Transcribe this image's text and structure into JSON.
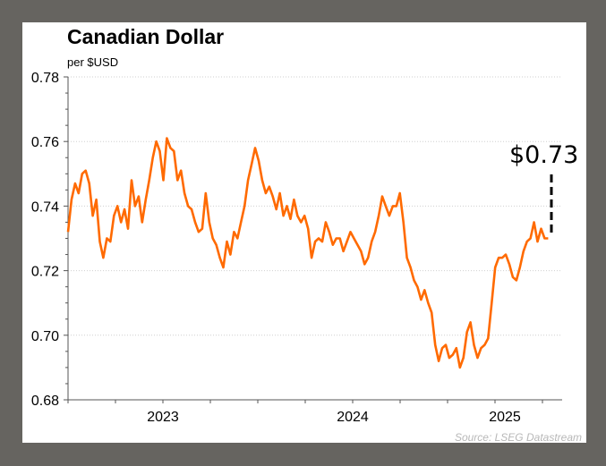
{
  "chart_data": {
    "type": "line",
    "title": "Canadian Dollar",
    "subtitle": "per $USD",
    "xlabel": "",
    "ylabel": "",
    "ylim": [
      0.68,
      0.78
    ],
    "yticks": [
      "0.78",
      "0.76",
      "0.74",
      "0.72",
      "0.70",
      "0.68"
    ],
    "ytick_values": [
      0.78,
      0.76,
      0.74,
      0.72,
      0.7,
      0.68
    ],
    "xticks": [
      "2023",
      "2024",
      "2025"
    ],
    "xlim": [
      2023.0,
      2025.58
    ],
    "grid": true,
    "series": [
      {
        "name": "Canadian Dollar per $USD",
        "color": "#ff6a00",
        "x_start": 2023.0,
        "x_end": 2025.53,
        "values": [
          0.732,
          0.742,
          0.747,
          0.744,
          0.75,
          0.751,
          0.747,
          0.737,
          0.742,
          0.729,
          0.724,
          0.73,
          0.729,
          0.737,
          0.74,
          0.735,
          0.739,
          0.733,
          0.748,
          0.74,
          0.743,
          0.735,
          0.742,
          0.748,
          0.755,
          0.76,
          0.757,
          0.748,
          0.761,
          0.758,
          0.757,
          0.748,
          0.751,
          0.744,
          0.74,
          0.739,
          0.735,
          0.732,
          0.733,
          0.744,
          0.735,
          0.73,
          0.728,
          0.724,
          0.721,
          0.729,
          0.725,
          0.732,
          0.73,
          0.735,
          0.74,
          0.748,
          0.753,
          0.758,
          0.754,
          0.748,
          0.744,
          0.746,
          0.743,
          0.739,
          0.744,
          0.737,
          0.74,
          0.736,
          0.742,
          0.737,
          0.735,
          0.737,
          0.733,
          0.724,
          0.729,
          0.73,
          0.729,
          0.735,
          0.732,
          0.728,
          0.73,
          0.73,
          0.726,
          0.729,
          0.732,
          0.73,
          0.728,
          0.726,
          0.722,
          0.724,
          0.729,
          0.732,
          0.737,
          0.743,
          0.74,
          0.737,
          0.74,
          0.74,
          0.744,
          0.735,
          0.724,
          0.721,
          0.717,
          0.715,
          0.711,
          0.714,
          0.71,
          0.707,
          0.697,
          0.692,
          0.696,
          0.697,
          0.693,
          0.694,
          0.696,
          0.69,
          0.693,
          0.701,
          0.704,
          0.697,
          0.693,
          0.696,
          0.697,
          0.699,
          0.71,
          0.721,
          0.724,
          0.724,
          0.725,
          0.722,
          0.718,
          0.717,
          0.721,
          0.726,
          0.729,
          0.73,
          0.735,
          0.729,
          0.733,
          0.73,
          0.73
        ]
      }
    ],
    "annotation": {
      "text": "$0.73",
      "value": 0.73
    },
    "source": "Source: LSEG Datastream"
  }
}
